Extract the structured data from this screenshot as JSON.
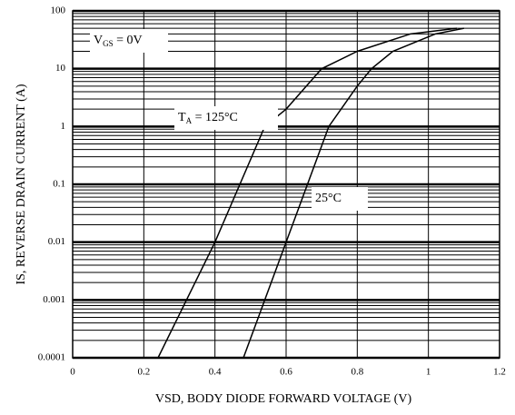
{
  "chart_data": {
    "type": "line",
    "xlabel": "VSD, BODY DIODE FORWARD VOLTAGE (V)",
    "ylabel": "IS, REVERSE DRAIN CURRENT (A)",
    "xlim": [
      0,
      1.2
    ],
    "xticks": [
      0,
      0.2,
      0.4,
      0.6,
      0.8,
      1,
      1.2
    ],
    "ylim": [
      0.0001,
      100
    ],
    "yticks": [
      0.0001,
      0.001,
      0.01,
      0.1,
      1,
      10,
      100
    ],
    "ylog": true,
    "grid": true,
    "minor_grid": true,
    "series": [
      {
        "name": "125°C",
        "color": "#000000",
        "x": [
          0.24,
          0.4,
          0.54,
          0.6,
          0.7,
          0.8,
          0.95,
          1.08
        ],
        "values": [
          0.0001,
          0.01,
          1,
          2,
          10,
          20,
          40,
          50
        ]
      },
      {
        "name": "25°C",
        "color": "#000000",
        "x": [
          0.48,
          0.6,
          0.72,
          0.8,
          0.84,
          0.9,
          1.02,
          1.1
        ],
        "values": [
          0.0001,
          0.01,
          1,
          5,
          10,
          20,
          40,
          50
        ]
      }
    ],
    "annotations": [
      {
        "main": "V",
        "sub": "GS",
        "tail": " = 0V"
      },
      {
        "main": "T",
        "sub": "A",
        "tail": " = 125°C"
      },
      {
        "main": "25°C"
      }
    ]
  }
}
